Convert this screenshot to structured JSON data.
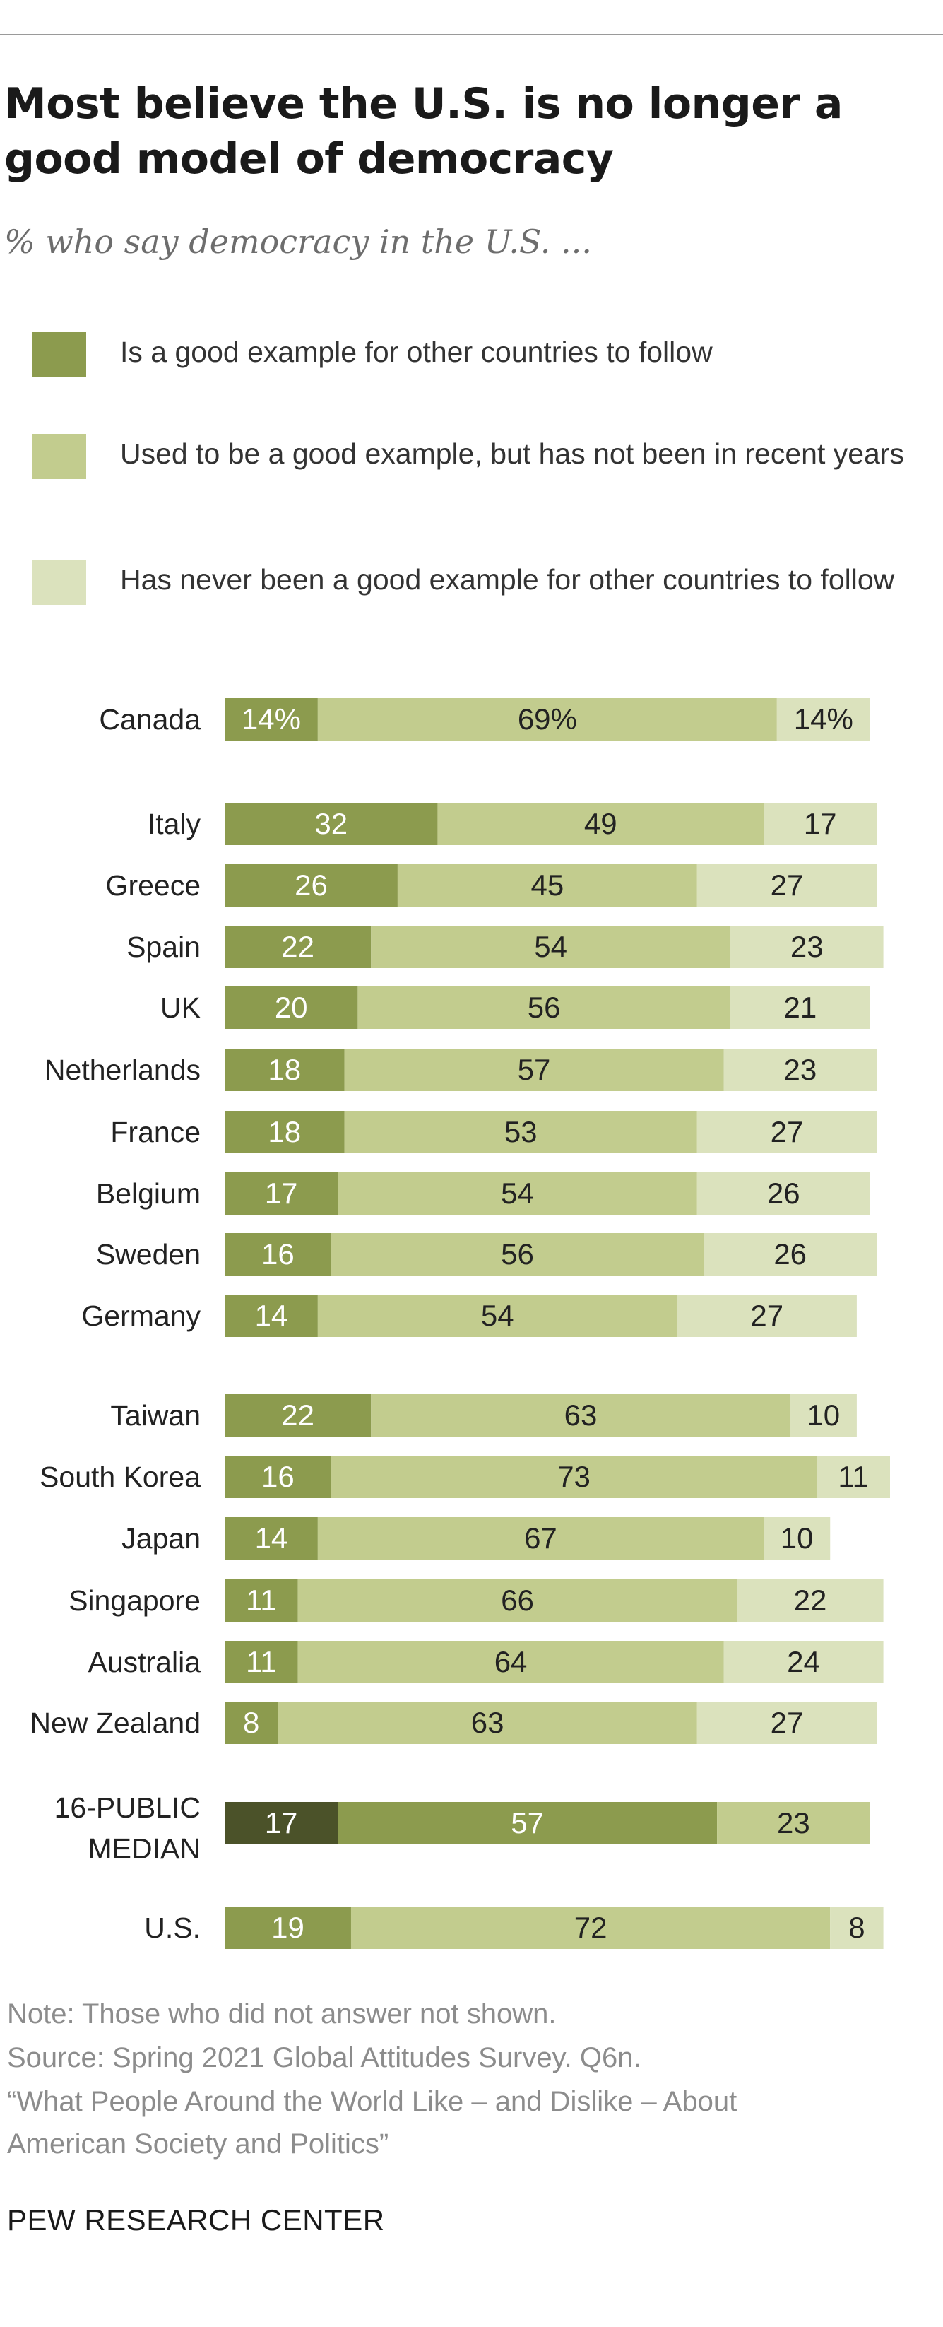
{
  "title": "Most believe the U.S. is no longer a good model of democracy",
  "subtitle": "% who say democracy in the U.S. ...",
  "colors": {
    "good": "#8c9b4e",
    "used_to_be": "#c2cc8e",
    "never": "#dbe2bd",
    "median_good": "#4b5229",
    "median_used_to_be": "#8c9b4e",
    "median_never": "#c2cc8e"
  },
  "chart_data": {
    "type": "bar",
    "orientation": "horizontal",
    "stacked": true,
    "legend": "top",
    "series": [
      {
        "name": "Is a good example for other countries to follow",
        "values": [
          14,
          32,
          26,
          22,
          20,
          18,
          18,
          17,
          16,
          14,
          22,
          16,
          14,
          11,
          11,
          8,
          17,
          19
        ]
      },
      {
        "name": "Used to be a good example, but has not been in recent years",
        "values": [
          69,
          49,
          45,
          54,
          56,
          57,
          53,
          54,
          56,
          54,
          63,
          73,
          67,
          66,
          64,
          63,
          57,
          72
        ]
      },
      {
        "name": "Has never been a good example for other countries to follow",
        "values": [
          14,
          17,
          27,
          23,
          21,
          23,
          27,
          26,
          26,
          27,
          10,
          11,
          10,
          22,
          24,
          27,
          23,
          8
        ]
      }
    ],
    "categories": [
      "Canada",
      "Italy",
      "Greece",
      "Spain",
      "UK",
      "Netherlands",
      "France",
      "Belgium",
      "Sweden",
      "Germany",
      "Taiwan",
      "South Korea",
      "Japan",
      "Singapore",
      "Australia",
      "New Zealand",
      "16-PUBLIC MEDIAN",
      "U.S."
    ],
    "percent_suffix_rows": [
      "Canada"
    ],
    "highlight_row": "16-PUBLIC MEDIAN"
  },
  "footer": {
    "note": "Note: Those who did not answer not shown.",
    "source": "Source: Spring 2021 Global Attitudes Survey. Q6n.",
    "report_line1": "“What People Around the World Like – and Dislike – About",
    "report_line2": "American Society and Politics”"
  },
  "brand": "PEW RESEARCH CENTER"
}
